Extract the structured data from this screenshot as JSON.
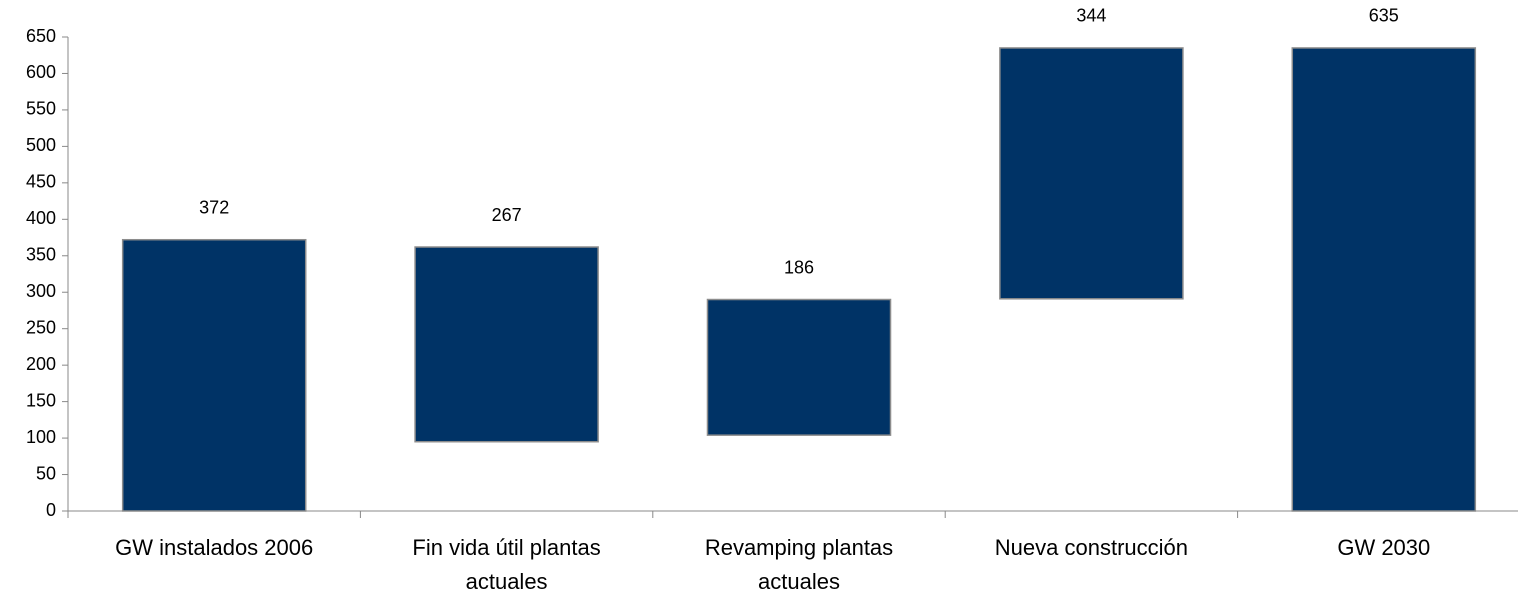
{
  "chart_data": {
    "type": "stacked_bar",
    "categories": [
      "GW instalados 2006",
      "Fin vida útil plantas actuales",
      "Revamping plantas actuales",
      "Nueva construcción",
      "GW 2030"
    ],
    "series": [
      {
        "color": "transparent",
        "values": [
          0,
          95,
          104,
          291,
          0
        ]
      },
      {
        "color": "#003366",
        "values": [
          372,
          267,
          186,
          344,
          635
        ]
      }
    ],
    "ylim": [
      0,
      650
    ],
    "yticks": [
      0,
      50,
      100,
      150,
      200,
      250,
      300,
      350,
      400,
      450,
      500,
      550,
      600,
      650
    ]
  }
}
